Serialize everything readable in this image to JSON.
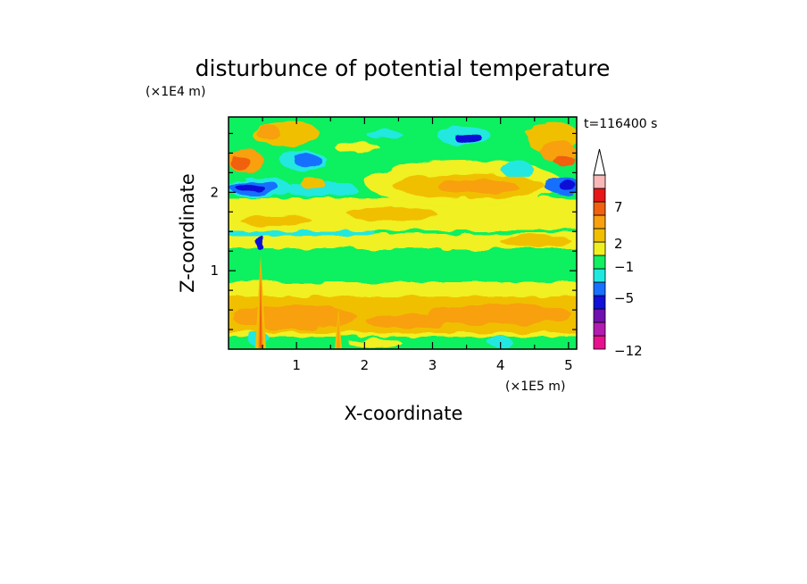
{
  "chart_data": {
    "type": "heatmap",
    "title": "disturbunce of potential temperature",
    "time_label": "t=116400 s",
    "xlabel": "X-coordinate",
    "ylabel": "Z-coordinate",
    "x_unit": "(×1E5 m)",
    "y_unit": "(×1E4 m)",
    "xlim": [
      0,
      5.12
    ],
    "ylim": [
      0,
      2.96
    ],
    "x_ticks": [
      "1",
      "2",
      "3",
      "4",
      "5"
    ],
    "y_ticks": [
      "1",
      "2"
    ],
    "grid": false,
    "colorbar": {
      "tick_labels": [
        "7",
        "2",
        "−1",
        "−5",
        "−12"
      ],
      "colors": [
        "#e8108c",
        "#b21ab0",
        "#7010b0",
        "#1010d8",
        "#1870ff",
        "#20e8e0",
        "#10f060",
        "#f0f020",
        "#f0c000",
        "#f8a010",
        "#f06010",
        "#e81818",
        "#f8b8b8"
      ],
      "extend_max": true
    }
  }
}
